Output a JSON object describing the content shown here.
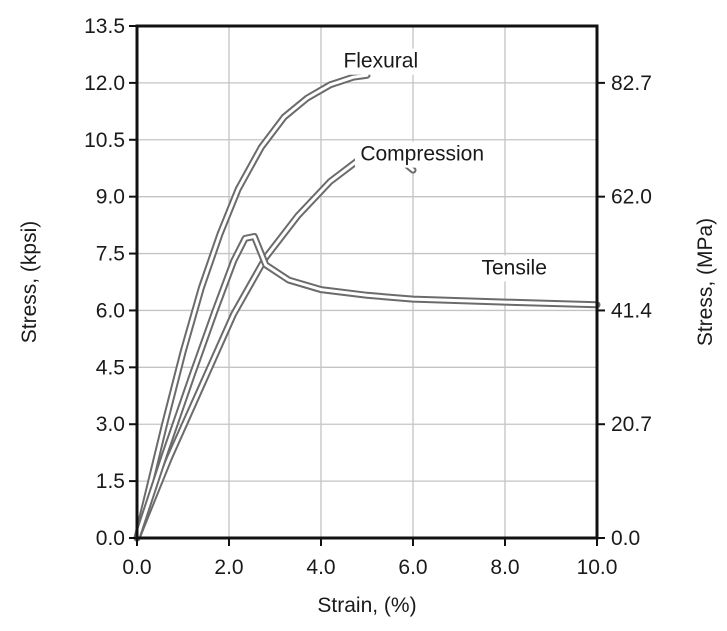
{
  "chart_data": {
    "type": "line",
    "title": "",
    "xlabel": "Strain, (%)",
    "ylabel": "Stress, (kpsi)",
    "y2label": "Stress, (MPa)",
    "xlim": [
      0,
      10
    ],
    "ylim": [
      0,
      13.5
    ],
    "grid": true,
    "x_ticks": [
      "0.0",
      "2.0",
      "4.0",
      "6.0",
      "8.0",
      "10.0"
    ],
    "y_ticks": [
      "0.0",
      "1.5",
      "3.0",
      "4.5",
      "6.0",
      "7.5",
      "9.0",
      "10.5",
      "12.0",
      "13.5"
    ],
    "y2_ticks": [
      {
        "label": "0.0",
        "y": 0.0
      },
      {
        "label": "20.7",
        "y": 3.0
      },
      {
        "label": "41.4",
        "y": 6.0
      },
      {
        "label": "62.0",
        "y": 9.0
      },
      {
        "label": "82.7",
        "y": 12.0
      }
    ],
    "series": [
      {
        "name": "Flexural",
        "label_at": {
          "x": 5.3,
          "y": 12.4
        },
        "points": [
          [
            0,
            0
          ],
          [
            0.6,
            3.0
          ],
          [
            1.0,
            4.9
          ],
          [
            1.4,
            6.6
          ],
          [
            1.8,
            8.0
          ],
          [
            2.2,
            9.2
          ],
          [
            2.7,
            10.3
          ],
          [
            3.2,
            11.1
          ],
          [
            3.7,
            11.6
          ],
          [
            4.2,
            11.95
          ],
          [
            4.7,
            12.15
          ],
          [
            5.0,
            12.2
          ]
        ]
      },
      {
        "name": "Compression",
        "label_at": {
          "x": 6.2,
          "y": 9.95
        },
        "points": [
          [
            0,
            0
          ],
          [
            0.7,
            2.1
          ],
          [
            1.4,
            4.0
          ],
          [
            2.1,
            5.9
          ],
          [
            2.8,
            7.4
          ],
          [
            3.5,
            8.5
          ],
          [
            4.2,
            9.4
          ],
          [
            4.8,
            9.95
          ],
          [
            5.3,
            10.1
          ],
          [
            5.7,
            10.0
          ],
          [
            6.0,
            9.7
          ]
        ]
      },
      {
        "name": "Tensile",
        "label_at": {
          "x": 8.2,
          "y": 6.95
        },
        "points": [
          [
            0,
            0
          ],
          [
            0.6,
            2.2
          ],
          [
            1.2,
            4.3
          ],
          [
            1.7,
            6.0
          ],
          [
            2.1,
            7.3
          ],
          [
            2.35,
            7.9
          ],
          [
            2.55,
            7.95
          ],
          [
            2.8,
            7.2
          ],
          [
            3.3,
            6.8
          ],
          [
            4.0,
            6.55
          ],
          [
            5.0,
            6.4
          ],
          [
            6.0,
            6.3
          ],
          [
            8.0,
            6.22
          ],
          [
            10.0,
            6.15
          ]
        ]
      }
    ]
  }
}
